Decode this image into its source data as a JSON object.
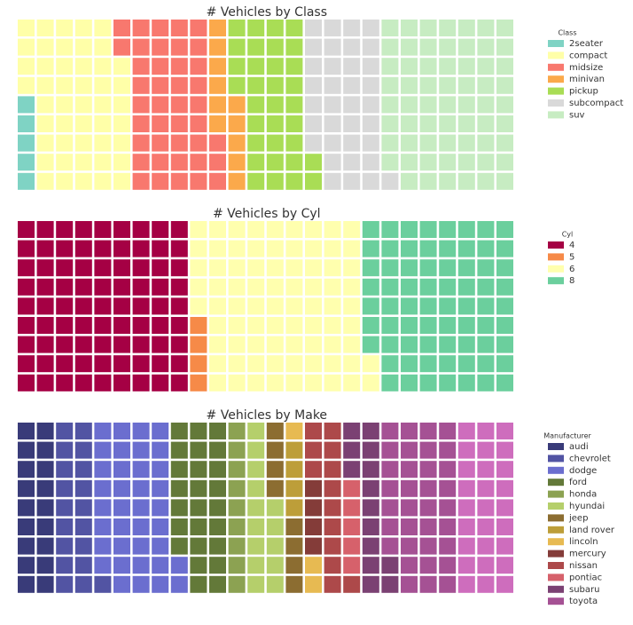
{
  "chart_data": [
    {
      "type": "waffle",
      "title": "# Vehicles by Class",
      "legend_title": "Class",
      "categories": [
        "2seater",
        "compact",
        "midsize",
        "minivan",
        "pickup",
        "subcompact",
        "suv"
      ],
      "values": [
        5,
        47,
        41,
        11,
        33,
        35,
        62
      ],
      "colors": [
        "#7fd3c4",
        "#ffffa8",
        "#f8786e",
        "#fba94b",
        "#a9dd55",
        "#d9d9d9",
        "#c7ecc2"
      ]
    },
    {
      "type": "waffle",
      "title": "# Vehicles by Cyl",
      "legend_title": "Cyl",
      "categories": [
        "4",
        "5",
        "6",
        "8"
      ],
      "values": [
        81,
        4,
        79,
        70
      ],
      "colors": [
        "#a50044",
        "#f68a48",
        "#ffffae",
        "#6bcf9d"
      ]
    },
    {
      "type": "waffle",
      "title": "# Vehicles by Make",
      "legend_title": "Manufacturer",
      "categories": [
        "audi",
        "chevrolet",
        "dodge",
        "ford",
        "honda",
        "hyundai",
        "jeep",
        "land rover",
        "lincoln",
        "mercury",
        "nissan",
        "pontiac",
        "subaru",
        "toyota",
        null
      ],
      "values": [
        18,
        19,
        37,
        25,
        9,
        14,
        8,
        4,
        3,
        4,
        13,
        5,
        14,
        34,
        27
      ],
      "colors": [
        "#393b79",
        "#5254a3",
        "#6b6ecf",
        "#637939",
        "#8ca252",
        "#b5cf6b",
        "#8c6d31",
        "#bd9e39",
        "#e7ba52",
        "#843c39",
        "#ad494a",
        "#d6616b",
        "#7b4173",
        "#a55194",
        "#ce6dbd"
      ]
    }
  ]
}
